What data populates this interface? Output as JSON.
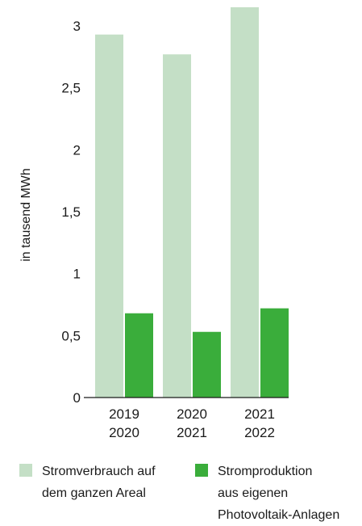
{
  "colors": {
    "consumption": "#c4dfc6",
    "production": "#3aad3b",
    "axis": "#1a1a1a"
  },
  "chart_data": {
    "type": "bar",
    "categories": [
      [
        "2019",
        "2020"
      ],
      [
        "2020",
        "2021"
      ],
      [
        "2021",
        "2022"
      ]
    ],
    "series": [
      {
        "name": "Stromverbrauch auf dem ganzen Areal",
        "values": [
          2.93,
          2.77,
          3.15
        ]
      },
      {
        "name": "Stromproduktion aus eigenen Photovoltaik-Anlagen",
        "values": [
          0.68,
          0.53,
          0.72
        ]
      }
    ],
    "ylabel": "in tausend MWh",
    "ylim": [
      0,
      3
    ],
    "yticks": [
      "0",
      "0,5",
      "1",
      "1,5",
      "2",
      "2,5",
      "3"
    ],
    "grid": false,
    "legend_position": "bottom"
  },
  "legend": {
    "consumption": {
      "line1": "Stromverbrauch auf",
      "line2": "dem ganzen Areal"
    },
    "production": {
      "line1": "Stromproduktion",
      "line2": "aus eigenen",
      "line3": "Photovoltaik-Anlagen"
    }
  }
}
